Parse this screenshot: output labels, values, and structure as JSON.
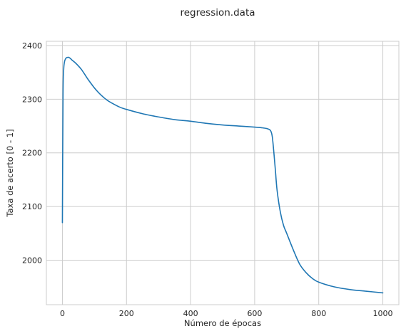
{
  "chart_data": {
    "type": "line",
    "title": "regression.data",
    "xlabel": "Número de épocas",
    "ylabel": "Taxa de acerto [0 - 1]",
    "xlim": [
      -50,
      1050
    ],
    "ylim": [
      1917,
      2408
    ],
    "xticks": [
      0,
      200,
      400,
      600,
      800,
      1000
    ],
    "xtick_labels": [
      "0",
      "200",
      "400",
      "600",
      "800",
      "1000"
    ],
    "yticks": [
      2000,
      2100,
      2200,
      2300,
      2400
    ],
    "ytick_labels": [
      "2000",
      "2100",
      "2200",
      "2300",
      "2400"
    ],
    "grid": true,
    "series": [
      {
        "color": "#1f77b4",
        "x": [
          0,
          2,
          4,
          6,
          8,
          12,
          16,
          20,
          25,
          30,
          40,
          50,
          60,
          70,
          80,
          100,
          120,
          140,
          160,
          180,
          200,
          250,
          300,
          350,
          400,
          450,
          500,
          550,
          600,
          620,
          640,
          650,
          655,
          660,
          665,
          670,
          680,
          690,
          700,
          720,
          740,
          760,
          780,
          800,
          850,
          900,
          950,
          1000
        ],
        "y": [
          2070,
          2310,
          2355,
          2368,
          2373,
          2377,
          2378,
          2378,
          2376,
          2373,
          2368,
          2362,
          2355,
          2346,
          2337,
          2321,
          2308,
          2298,
          2291,
          2285,
          2281,
          2273,
          2267,
          2262,
          2259,
          2255,
          2252,
          2250,
          2248,
          2247,
          2245,
          2241,
          2230,
          2200,
          2165,
          2130,
          2090,
          2065,
          2050,
          2020,
          1993,
          1977,
          1966,
          1959,
          1950,
          1945,
          1942,
          1939
        ]
      }
    ]
  }
}
